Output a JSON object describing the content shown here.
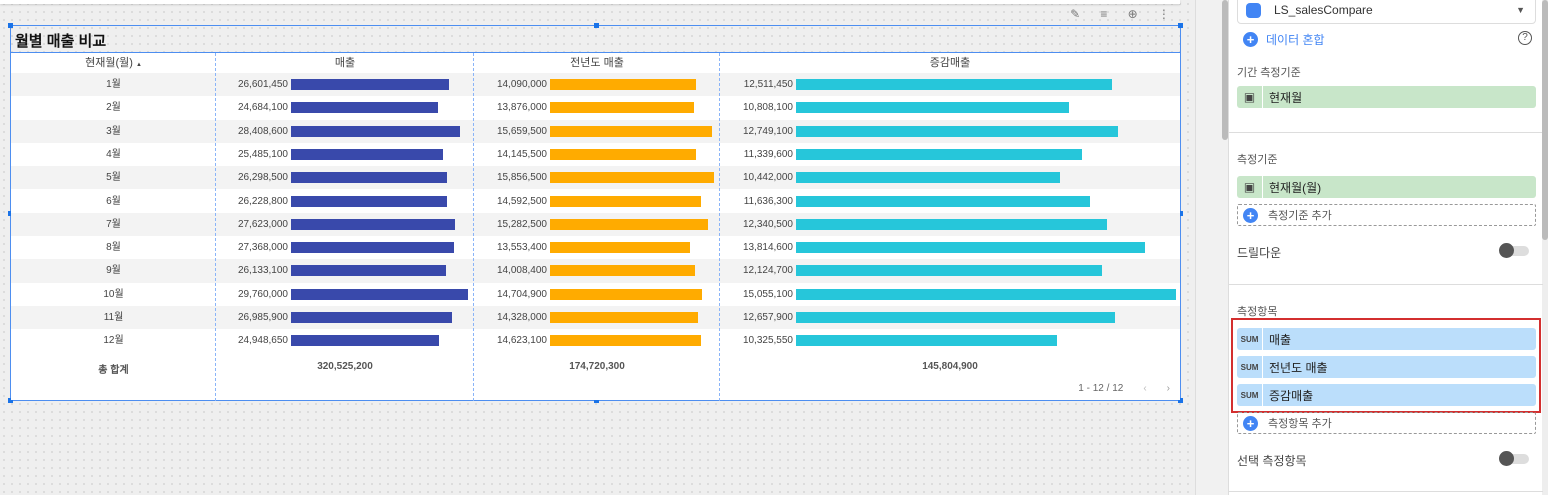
{
  "chart": {
    "title": "월별 매출 비교",
    "toolbar_icons": [
      "pencil-icon",
      "filter-icon",
      "zoom-icon",
      "more-vert-icon"
    ],
    "headers": [
      "현재월(월)",
      "매출",
      "전년도 매출",
      "증감매출"
    ],
    "sort_icon": "▲",
    "rows": [
      {
        "month": "1월",
        "sales": "26,601,450",
        "prev": "14,090,000",
        "diff": "12,511,450"
      },
      {
        "month": "2월",
        "sales": "24,684,100",
        "prev": "13,876,000",
        "diff": "10,808,100"
      },
      {
        "month": "3월",
        "sales": "28,408,600",
        "prev": "15,659,500",
        "diff": "12,749,100"
      },
      {
        "month": "4월",
        "sales": "25,485,100",
        "prev": "14,145,500",
        "diff": "11,339,600"
      },
      {
        "month": "5월",
        "sales": "26,298,500",
        "prev": "15,856,500",
        "diff": "10,442,000"
      },
      {
        "month": "6월",
        "sales": "26,228,800",
        "prev": "14,592,500",
        "diff": "11,636,300"
      },
      {
        "month": "7월",
        "sales": "27,623,000",
        "prev": "15,282,500",
        "diff": "12,340,500"
      },
      {
        "month": "8월",
        "sales": "27,368,000",
        "prev": "13,553,400",
        "diff": "13,814,600"
      },
      {
        "month": "9월",
        "sales": "26,133,100",
        "prev": "14,008,400",
        "diff": "12,124,700"
      },
      {
        "month": "10월",
        "sales": "29,760,000",
        "prev": "14,704,900",
        "diff": "15,055,100"
      },
      {
        "month": "11월",
        "sales": "26,985,900",
        "prev": "14,328,000",
        "diff": "12,657,900"
      },
      {
        "month": "12월",
        "sales": "24,948,650",
        "prev": "14,623,100",
        "diff": "10,325,550"
      }
    ],
    "total_label": "총 합계",
    "totals": [
      "320,525,200",
      "174,720,300",
      "145,804,900"
    ],
    "pagination": "1 - 12 / 12",
    "colors": {
      "sales": "#3949ab",
      "prev": "#ffab00",
      "diff": "#26c6da"
    }
  },
  "panel": {
    "datasource": "LS_salesCompare",
    "blend": "데이터 혼합",
    "date_range_label": "기간 측정기준",
    "date_range_field": "현재월",
    "dimension_label": "측정기준",
    "dimension_field": "현재월(월)",
    "add_dimension": "측정기준 추가",
    "drilldown": "드릴다운",
    "metric_label": "측정항목",
    "metrics": [
      {
        "agg": "SUM",
        "name": "매출"
      },
      {
        "agg": "SUM",
        "name": "전년도 매출"
      },
      {
        "agg": "SUM",
        "name": "증감매출"
      }
    ],
    "add_metric": "측정항목 추가",
    "optional_metrics": "선택 측정항목"
  }
}
